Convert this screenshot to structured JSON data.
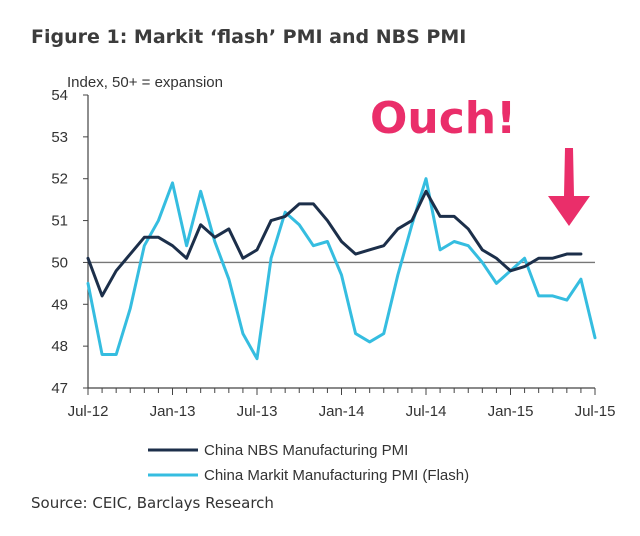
{
  "title": "Figure 1: Markit ‘flash’ PMI and NBS PMI",
  "source": "Source: CEIC, Barclays Research",
  "chart_data": {
    "type": "line",
    "y_unit_label": "Index, 50+ = expansion",
    "ylim": [
      47,
      54
    ],
    "yticks": [
      47,
      48,
      49,
      50,
      51,
      52,
      53,
      54
    ],
    "reference_line": 50,
    "x_tick_labels": [
      "Jul-12",
      "Jan-13",
      "Jul-13",
      "Jan-14",
      "Jul-14",
      "Jan-15",
      "Jul-15"
    ],
    "x_tick_index": [
      0,
      6,
      12,
      18,
      24,
      30,
      36
    ],
    "x_count": 37,
    "series": [
      {
        "name": "China NBS Manufacturing PMI",
        "color": "#1c2f4a",
        "values": [
          50.1,
          49.2,
          49.8,
          50.2,
          50.6,
          50.6,
          50.4,
          50.1,
          50.9,
          50.6,
          50.8,
          50.1,
          50.3,
          51.0,
          51.1,
          51.4,
          51.4,
          51.0,
          50.5,
          50.2,
          50.3,
          50.4,
          50.8,
          51.0,
          51.7,
          51.1,
          51.1,
          50.8,
          50.3,
          50.1,
          49.8,
          49.9,
          50.1,
          50.1,
          50.2,
          50.2,
          null
        ]
      },
      {
        "name": "China Markit Manufacturing PMI (Flash)",
        "color": "#35bde0",
        "values": [
          49.5,
          47.8,
          47.8,
          48.9,
          50.4,
          51.0,
          51.9,
          50.4,
          51.7,
          50.5,
          49.6,
          48.3,
          47.7,
          50.1,
          51.2,
          50.9,
          50.4,
          50.5,
          49.7,
          48.3,
          48.1,
          48.3,
          49.7,
          50.9,
          52.0,
          50.3,
          50.5,
          50.4,
          50.0,
          49.5,
          49.8,
          50.1,
          49.2,
          49.2,
          49.1,
          49.6,
          48.2
        ]
      }
    ],
    "legend_position": "bottom",
    "annotation": "Ouch!"
  }
}
